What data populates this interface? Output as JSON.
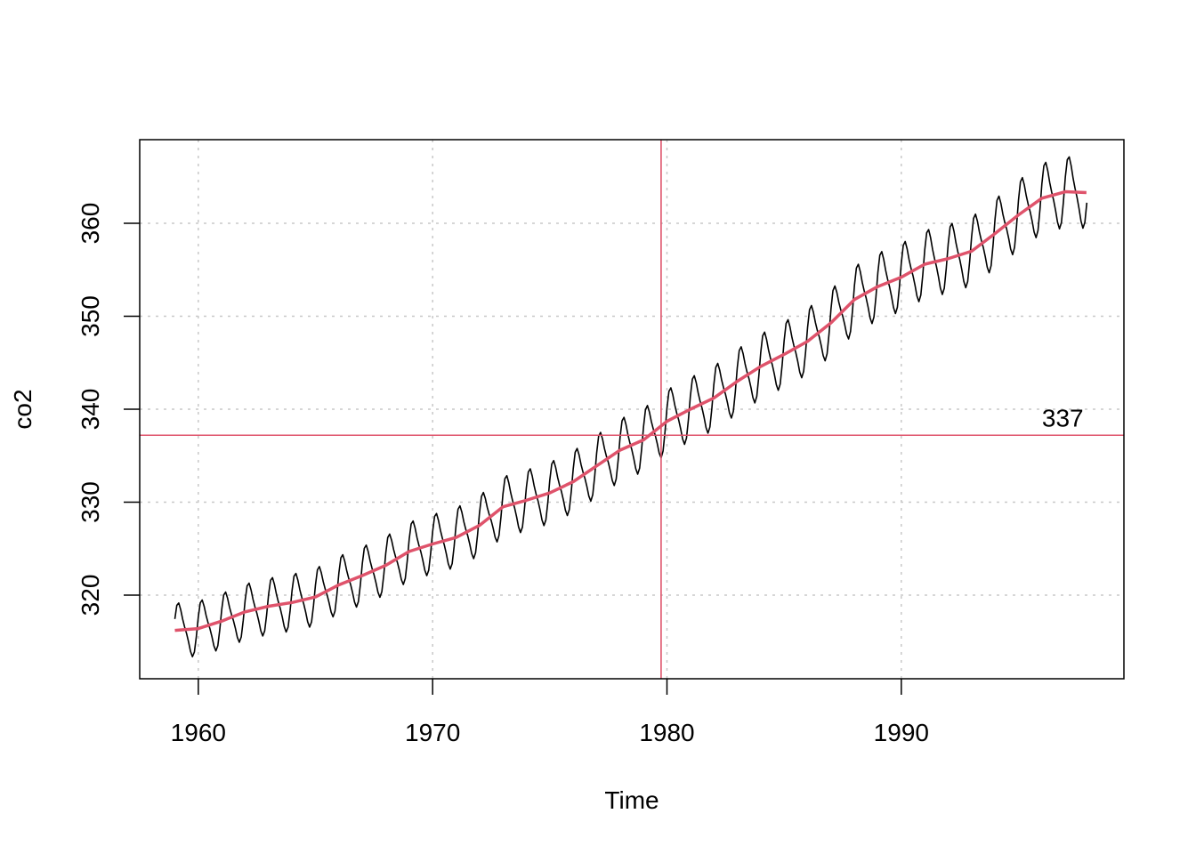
{
  "chart_data": {
    "type": "line",
    "title": "",
    "xlabel": "Time",
    "ylabel": "co2",
    "xlim": [
      1957.5,
      1999.5
    ],
    "ylim": [
      311.0,
      369.0
    ],
    "x_ticks": [
      1960,
      1970,
      1980,
      1990
    ],
    "x_tick_labels": [
      "1960",
      "1970",
      "1980",
      "1990"
    ],
    "y_ticks": [
      320,
      330,
      340,
      350,
      360
    ],
    "y_tick_labels": [
      "320",
      "330",
      "340",
      "350",
      "360"
    ],
    "grid": true,
    "series": [
      {
        "style": "thin-line",
        "color": "#000000",
        "description_x_range": [
          1959.0,
          1997.9
        ],
        "model": {
          "x_start": 1959.0,
          "x_step": 0.0833333,
          "n_points": 468,
          "trend_points": [
            [
              1959.0,
              316.2
            ],
            [
              1960.0,
              316.4
            ],
            [
              1961.0,
              317.2
            ],
            [
              1962.0,
              318.2
            ],
            [
              1963.0,
              318.8
            ],
            [
              1964.0,
              319.2
            ],
            [
              1965.0,
              319.8
            ],
            [
              1966.0,
              321.1
            ],
            [
              1967.0,
              322.1
            ],
            [
              1968.0,
              323.2
            ],
            [
              1969.0,
              324.7
            ],
            [
              1970.0,
              325.5
            ],
            [
              1971.0,
              326.2
            ],
            [
              1972.0,
              327.5
            ],
            [
              1973.0,
              329.5
            ],
            [
              1974.0,
              330.2
            ],
            [
              1975.0,
              331.0
            ],
            [
              1976.0,
              332.2
            ],
            [
              1977.0,
              333.9
            ],
            [
              1978.0,
              335.6
            ],
            [
              1979.0,
              336.7
            ],
            [
              1980.0,
              338.7
            ],
            [
              1981.0,
              340.0
            ],
            [
              1982.0,
              341.2
            ],
            [
              1983.0,
              343.0
            ],
            [
              1984.0,
              344.6
            ],
            [
              1985.0,
              345.9
            ],
            [
              1986.0,
              347.3
            ],
            [
              1987.0,
              349.3
            ],
            [
              1988.0,
              351.8
            ],
            [
              1989.0,
              353.2
            ],
            [
              1990.0,
              354.2
            ],
            [
              1991.0,
              355.6
            ],
            [
              1992.0,
              356.2
            ],
            [
              1993.0,
              357.0
            ],
            [
              1994.0,
              358.9
            ],
            [
              1995.0,
              360.9
            ],
            [
              1996.0,
              362.7
            ],
            [
              1997.0,
              363.4
            ],
            [
              1997.9,
              363.3
            ]
          ],
          "seasonal_amplitude_start": 2.7,
          "seasonal_amplitude_end": 3.5
        }
      },
      {
        "style": "thick-line",
        "color": "#DF536B",
        "points": [
          [
            1959.0,
            316.2
          ],
          [
            1960.0,
            316.4
          ],
          [
            1961.0,
            317.2
          ],
          [
            1962.0,
            318.2
          ],
          [
            1963.0,
            318.8
          ],
          [
            1964.0,
            319.2
          ],
          [
            1965.0,
            319.8
          ],
          [
            1966.0,
            321.1
          ],
          [
            1967.0,
            322.1
          ],
          [
            1968.0,
            323.2
          ],
          [
            1969.0,
            324.7
          ],
          [
            1970.0,
            325.5
          ],
          [
            1971.0,
            326.2
          ],
          [
            1972.0,
            327.5
          ],
          [
            1973.0,
            329.5
          ],
          [
            1974.0,
            330.2
          ],
          [
            1975.0,
            331.0
          ],
          [
            1976.0,
            332.2
          ],
          [
            1977.0,
            333.9
          ],
          [
            1978.0,
            335.6
          ],
          [
            1979.0,
            336.7
          ],
          [
            1980.0,
            338.7
          ],
          [
            1981.0,
            340.0
          ],
          [
            1982.0,
            341.2
          ],
          [
            1983.0,
            343.0
          ],
          [
            1984.0,
            344.6
          ],
          [
            1985.0,
            345.9
          ],
          [
            1986.0,
            347.3
          ],
          [
            1987.0,
            349.3
          ],
          [
            1988.0,
            351.8
          ],
          [
            1989.0,
            353.2
          ],
          [
            1990.0,
            354.2
          ],
          [
            1991.0,
            355.6
          ],
          [
            1992.0,
            356.2
          ],
          [
            1993.0,
            357.0
          ],
          [
            1994.0,
            358.9
          ],
          [
            1995.0,
            360.9
          ],
          [
            1996.0,
            362.7
          ],
          [
            1997.0,
            363.4
          ],
          [
            1997.9,
            363.3
          ]
        ]
      }
    ],
    "reference_lines": {
      "vertical_x": 1979.75,
      "horizontal_y": 337.2,
      "color": "#DF536B"
    },
    "annotations": [
      {
        "text": "337",
        "x": 1997.7,
        "y": 337.2
      }
    ]
  }
}
